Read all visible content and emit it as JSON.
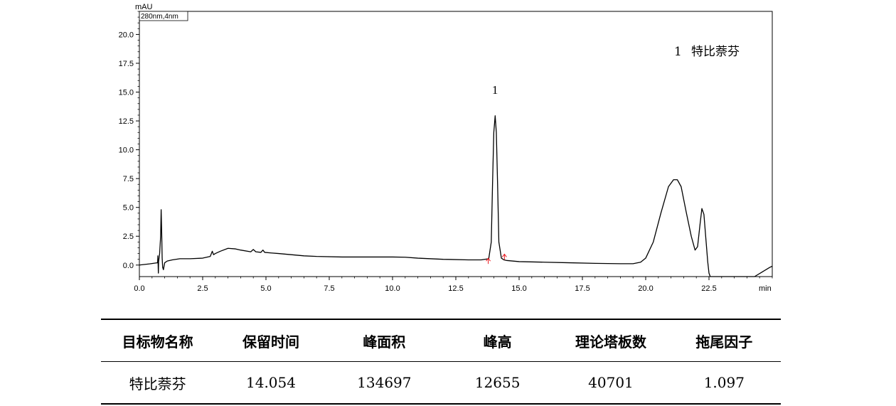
{
  "chart_data": {
    "type": "line",
    "detector_label": "280nm,4nm",
    "y_unit": "mAU",
    "x_unit": "min",
    "xlim": [
      0,
      25
    ],
    "ylim": [
      -1,
      22
    ],
    "x_ticks": [
      0.0,
      2.5,
      5.0,
      7.5,
      10.0,
      12.5,
      15.0,
      17.5,
      20.0,
      22.5
    ],
    "x_tick_labels": [
      "0.0",
      "2.5",
      "5.0",
      "7.5",
      "10.0",
      "12.5",
      "15.0",
      "17.5",
      "20.0",
      "22.5"
    ],
    "y_ticks": [
      0.0,
      2.5,
      5.0,
      7.5,
      10.0,
      12.5,
      15.0,
      17.5,
      20.0
    ],
    "y_tick_labels": [
      "0.0",
      "2.5",
      "5.0",
      "7.5",
      "10.0",
      "12.5",
      "15.0",
      "17.5",
      "20.0"
    ],
    "grid": false,
    "legend": {
      "number": "1",
      "name": "特比萘芬",
      "placement": "top-right"
    },
    "peak_annotations": [
      {
        "label": "1",
        "x": 14.05,
        "y": 13.0
      }
    ],
    "integration_marks": [
      {
        "x": 13.78,
        "y": 0.1
      },
      {
        "x": 14.42,
        "y": 0.45
      }
    ],
    "series": [
      {
        "x": [
          0.0,
          0.4,
          0.72,
          0.73,
          0.74,
          0.75,
          0.76,
          0.8,
          0.84,
          0.86,
          0.88,
          0.9,
          0.92,
          0.95,
          1.0,
          1.1,
          1.3,
          1.6,
          2.0,
          2.5,
          2.8,
          2.88,
          2.93,
          3.0,
          3.2,
          3.5,
          3.8,
          4.0,
          4.4,
          4.5,
          4.6,
          4.8,
          4.88,
          4.95,
          5.2,
          5.5,
          6.0,
          6.5,
          7.0,
          8.0,
          9.0,
          10.0,
          10.5,
          11.0,
          12.0,
          13.0,
          13.5,
          13.8,
          13.9,
          13.95,
          14.0,
          14.054,
          14.1,
          14.15,
          14.2,
          14.3,
          14.4,
          14.5,
          15.0,
          16.0,
          17.0,
          18.0,
          19.0,
          19.5,
          19.8,
          20.0,
          20.3,
          20.6,
          20.9,
          21.1,
          21.25,
          21.4,
          21.6,
          21.8,
          21.95,
          22.05,
          22.15,
          22.22,
          22.3,
          22.38,
          22.45,
          22.5,
          22.55,
          22.62,
          22.7,
          24.3,
          24.6,
          24.9,
          25.0
        ],
        "y": [
          0.0,
          0.1,
          0.2,
          0.8,
          0.1,
          -0.7,
          0.3,
          1.0,
          2.5,
          4.8,
          3.0,
          0.6,
          -0.2,
          -0.4,
          0.2,
          0.35,
          0.45,
          0.55,
          0.55,
          0.6,
          0.75,
          1.2,
          0.9,
          1.0,
          1.2,
          1.45,
          1.4,
          1.3,
          1.15,
          1.35,
          1.15,
          1.1,
          1.3,
          1.1,
          1.05,
          1.0,
          0.9,
          0.8,
          0.75,
          0.7,
          0.7,
          0.7,
          0.68,
          0.6,
          0.5,
          0.45,
          0.45,
          0.55,
          2.0,
          7.0,
          11.5,
          12.95,
          11.5,
          7.0,
          2.0,
          0.6,
          0.45,
          0.4,
          0.3,
          0.25,
          0.2,
          0.15,
          0.12,
          0.12,
          0.25,
          0.6,
          2.0,
          4.5,
          6.8,
          7.4,
          7.4,
          6.8,
          4.6,
          2.5,
          1.3,
          1.6,
          3.6,
          4.9,
          4.4,
          2.2,
          0.3,
          -0.7,
          -1.0,
          -1.0,
          -1.0,
          -1.0,
          -0.6,
          -0.2,
          -0.1
        ]
      }
    ]
  },
  "table": {
    "headers": [
      "目标物名称",
      "保留时间",
      "峰面积",
      "峰高",
      "理论塔板数",
      "拖尾因子"
    ],
    "rows": [
      [
        "特比萘芬",
        "14.054",
        "134697",
        "12655",
        "40701",
        "1.097"
      ]
    ]
  }
}
